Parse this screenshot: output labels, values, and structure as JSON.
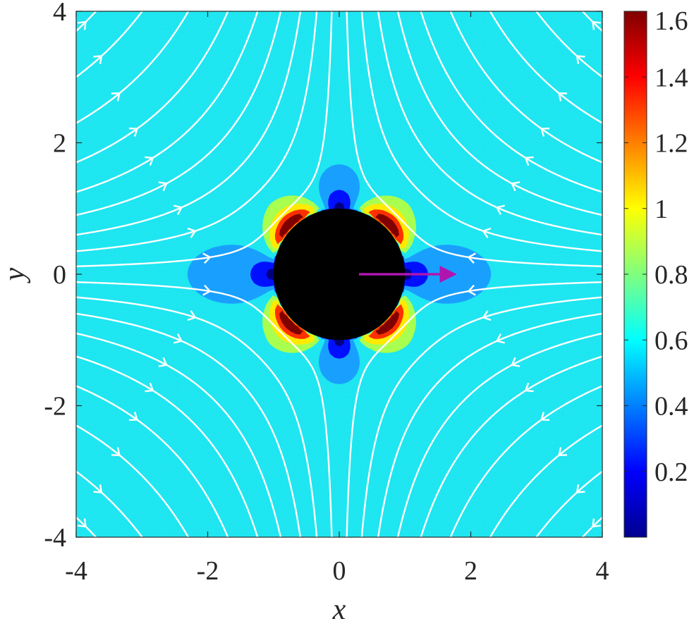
{
  "chart_data": {
    "type": "heatmap",
    "subtype": "filled-contour-with-streamlines",
    "title": "",
    "xlabel": "x",
    "ylabel": "y",
    "xlim": [
      -4,
      4
    ],
    "ylim": [
      -4,
      4
    ],
    "xticks": [
      -4,
      -2,
      0,
      2,
      4
    ],
    "yticks": [
      -4,
      -2,
      0,
      2,
      4
    ],
    "xtick_labels": [
      "-4",
      "-2",
      "0",
      "2",
      "4"
    ],
    "ytick_labels": [
      "-4",
      "-2",
      "0",
      "2",
      "4"
    ],
    "colorbar": {
      "colormap": "jet",
      "range": [
        0,
        1.6
      ],
      "ticks": [
        0.2,
        0.4,
        0.6,
        0.8,
        1,
        1.2,
        1.4,
        1.6
      ],
      "tick_labels": [
        "0.2",
        "0.4",
        "0.6",
        "0.8",
        "1",
        "1.2",
        "1.4",
        "1.6"
      ]
    },
    "contour_levels": [
      {
        "level": 0.05,
        "color": "#00007f"
      },
      {
        "level": 0.2,
        "color": "#0010ff"
      },
      {
        "level": 0.4,
        "color": "#19a0ff"
      },
      {
        "level": 0.55,
        "color": "#1fe6f0"
      },
      {
        "level": 0.8,
        "color": "#a8ff50"
      },
      {
        "level": 1.0,
        "color": "#ffea00"
      },
      {
        "level": 1.3,
        "color": "#ff3000"
      },
      {
        "level": 1.6,
        "color": "#7f0000"
      }
    ],
    "body": {
      "shape": "disk",
      "center": [
        0,
        0
      ],
      "radius": 1,
      "color": "#000000"
    },
    "swimming_direction": {
      "from": [
        0.3,
        0
      ],
      "to": [
        1.8,
        0
      ],
      "color": "#b015b0"
    },
    "streamline_color": "#ffffff",
    "grid": false
  }
}
